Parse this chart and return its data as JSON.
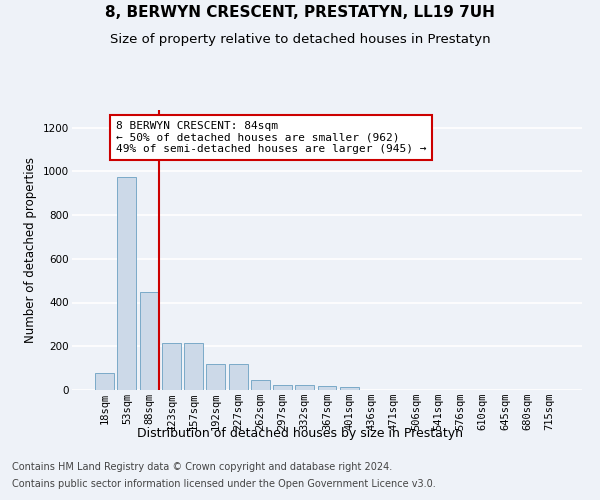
{
  "title": "8, BERWYN CRESCENT, PRESTATYN, LL19 7UH",
  "subtitle": "Size of property relative to detached houses in Prestatyn",
  "xlabel": "Distribution of detached houses by size in Prestatyn",
  "ylabel": "Number of detached properties",
  "bar_labels": [
    "18sqm",
    "53sqm",
    "88sqm",
    "123sqm",
    "157sqm",
    "192sqm",
    "227sqm",
    "262sqm",
    "297sqm",
    "332sqm",
    "367sqm",
    "401sqm",
    "436sqm",
    "471sqm",
    "506sqm",
    "541sqm",
    "576sqm",
    "610sqm",
    "645sqm",
    "680sqm",
    "715sqm"
  ],
  "bar_values": [
    80,
    975,
    450,
    215,
    215,
    120,
    120,
    45,
    25,
    25,
    20,
    15,
    0,
    0,
    0,
    0,
    0,
    0,
    0,
    0,
    0
  ],
  "bar_color": "#ccd9e8",
  "bar_edgecolor": "#7aaac8",
  "vline_x_index": 2,
  "vline_color": "#cc0000",
  "annotation_text": "8 BERWYN CRESCENT: 84sqm\n← 50% of detached houses are smaller (962)\n49% of semi-detached houses are larger (945) →",
  "annotation_box_color": "#ffffff",
  "annotation_box_edgecolor": "#cc0000",
  "ylim": [
    0,
    1280
  ],
  "yticks": [
    0,
    200,
    400,
    600,
    800,
    1000,
    1200
  ],
  "background_color": "#eef2f8",
  "grid_color": "#ffffff",
  "footer_line1": "Contains HM Land Registry data © Crown copyright and database right 2024.",
  "footer_line2": "Contains public sector information licensed under the Open Government Licence v3.0.",
  "title_fontsize": 11,
  "subtitle_fontsize": 9.5,
  "ylabel_fontsize": 8.5,
  "xlabel_fontsize": 9,
  "tick_fontsize": 7.5,
  "annotation_fontsize": 8,
  "footer_fontsize": 7
}
